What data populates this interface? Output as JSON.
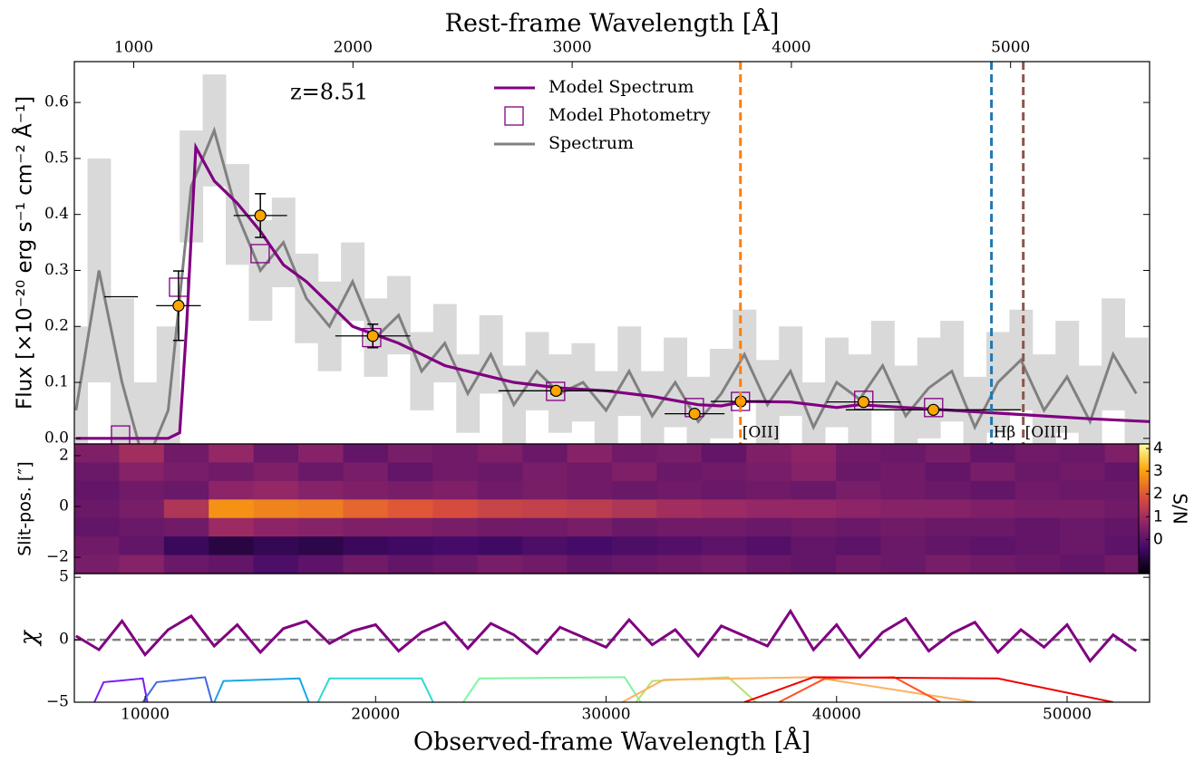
{
  "chart_data": [
    {
      "type": "line",
      "x2label": "Rest-frame Wavelength [Å]",
      "ylabel": "Flux [×10⁻²⁰ erg s⁻¹ cm⁻² Å⁻¹]",
      "annotation": "z=8.51",
      "legend": "upper center",
      "xlim": [
        6930,
        53580
      ],
      "x2lim": [
        729,
        5634
      ],
      "x2ticks": [
        1000,
        2000,
        3000,
        4000,
        5000
      ],
      "ylim": [
        -0.01,
        0.673
      ],
      "yticks": [
        {
          "value": 0,
          "label": "0.0"
        },
        0.1,
        0.2,
        0.3,
        0.4,
        0.5,
        0.6
      ],
      "series": [
        {
          "name": "Model Spectrum",
          "color": "#800080",
          "x": [
            7000,
            11000,
            11500,
            11800,
            12200,
            13000,
            14000,
            15000,
            16000,
            17000,
            18000,
            19000,
            20000,
            21000,
            22000,
            23000,
            24000,
            25000,
            26000,
            27000,
            28000,
            30000,
            32000,
            34000,
            35000,
            36000,
            38000,
            39000,
            40000,
            41000,
            43000,
            45000,
            47000,
            49000,
            51000,
            53580
          ],
          "values": [
            0.0,
            0.0,
            0.01,
            0.2,
            0.52,
            0.46,
            0.42,
            0.37,
            0.31,
            0.28,
            0.24,
            0.2,
            0.185,
            0.17,
            0.15,
            0.13,
            0.12,
            0.11,
            0.1,
            0.095,
            0.09,
            0.085,
            0.075,
            0.06,
            0.058,
            0.066,
            0.065,
            0.06,
            0.055,
            0.06,
            0.055,
            0.05,
            0.045,
            0.04,
            0.035,
            0.03
          ]
        },
        {
          "name": "Model Photometry",
          "color": "#800080",
          "marker": "square",
          "x": [
            8935,
            11452,
            14990,
            19830,
            27810,
            33830,
            35830,
            41180,
            44210
          ],
          "values": [
            0.006,
            0.27,
            0.33,
            0.18,
            0.084,
            0.055,
            0.066,
            0.068,
            0.055
          ]
        },
        {
          "name": "Spectrum",
          "color": "#808080",
          "band_color": "#d9d9d9",
          "x": [
            7000,
            8000,
            9000,
            10000,
            11000,
            12000,
            13000,
            14000,
            15000,
            16000,
            17000,
            18000,
            19000,
            20000,
            21000,
            22000,
            23000,
            24000,
            25000,
            26000,
            27000,
            28000,
            29000,
            30000,
            31000,
            32000,
            33000,
            34000,
            35000,
            36000,
            37000,
            38000,
            39000,
            40000,
            41000,
            42000,
            43000,
            44000,
            45000,
            46000,
            47000,
            48000,
            49000,
            50000,
            51000,
            52000,
            53000
          ],
          "values": [
            0.05,
            0.3,
            0.1,
            -0.05,
            0.05,
            0.45,
            0.55,
            0.4,
            0.3,
            0.35,
            0.25,
            0.2,
            0.28,
            0.18,
            0.22,
            0.12,
            0.17,
            0.08,
            0.15,
            0.06,
            0.12,
            0.08,
            0.1,
            0.05,
            0.12,
            0.04,
            0.1,
            0.03,
            0.08,
            0.15,
            0.06,
            0.12,
            0.02,
            0.1,
            0.07,
            0.13,
            0.04,
            0.09,
            0.12,
            0.02,
            0.1,
            0.14,
            0.05,
            0.11,
            0.03,
            0.15,
            0.08
          ],
          "errors": [
            0.15,
            0.2,
            0.15,
            0.15,
            0.15,
            0.1,
            0.1,
            0.09,
            0.09,
            0.08,
            0.08,
            0.08,
            0.07,
            0.07,
            0.07,
            0.07,
            0.07,
            0.07,
            0.07,
            0.07,
            0.07,
            0.07,
            0.07,
            0.07,
            0.08,
            0.08,
            0.08,
            0.08,
            0.08,
            0.08,
            0.08,
            0.08,
            0.08,
            0.08,
            0.08,
            0.08,
            0.09,
            0.09,
            0.09,
            0.09,
            0.09,
            0.09,
            0.1,
            0.1,
            0.1,
            0.1,
            0.1
          ]
        }
      ],
      "photometry": {
        "color": "#ffa500",
        "x": [
          8960,
          11450,
          15000,
          19880,
          27830,
          33840,
          35840,
          41170,
          44200
        ],
        "values": [
          0.253,
          0.237,
          0.398,
          0.183,
          0.085,
          0.044,
          0.066,
          0.065,
          0.051
        ],
        "xerr": [
          730,
          970,
          1160,
          1630,
          2500,
          1300,
          1300,
          1600,
          3800
        ],
        "yerr": [
          null,
          0.062,
          0.039,
          0.021,
          0.006,
          0.004,
          0.005,
          0.004,
          0.004
        ]
      },
      "lines": [
        {
          "label": "[OII]",
          "x": 35830,
          "color": "#ff7f0e"
        },
        {
          "label": "Hβ",
          "x": 46720,
          "color": "#1f77b4"
        },
        {
          "label": "[OIII]",
          "x": 48100,
          "color": "#8c564b"
        }
      ]
    },
    {
      "type": "heatmap",
      "ylabel": "Slit-pos. [″]",
      "xlim": [
        6930,
        53580
      ],
      "ylim": [
        -2.64,
        2.46
      ],
      "yticks": [
        {
          "value": -2,
          "label": "−2"
        },
        0,
        2
      ],
      "colormap": [
        "#000004",
        "#420a68",
        "#932667",
        "#dd513a",
        "#fca50a",
        "#fcffa4"
      ],
      "clim": [
        -1.5,
        4.2
      ],
      "colorbar_label": "S/N",
      "colorbar_ticks": [
        0,
        1,
        2,
        3,
        4
      ],
      "z": [
        [
          0.5,
          1,
          0.3,
          0.8,
          0.2,
          0.6,
          0.1,
          0.4,
          0.3,
          0.5,
          0.2,
          0.6,
          0.3,
          0.4,
          0.1,
          0.5,
          0.7,
          0.3,
          0.2,
          0.4,
          0.1,
          0.3,
          0.2,
          0.5
        ],
        [
          0.2,
          0.6,
          0.4,
          0.3,
          0.5,
          0.2,
          0.4,
          0.1,
          0.3,
          0.2,
          0.4,
          0.3,
          0.5,
          0.2,
          0.3,
          0.4,
          0.6,
          0.2,
          0.3,
          0.1,
          0.4,
          0.2,
          0.3,
          0.1
        ],
        [
          0.1,
          0.3,
          0.2,
          0.7,
          0.8,
          0.6,
          0.5,
          0.4,
          0.5,
          0.3,
          0.4,
          0.3,
          0.2,
          0.3,
          0.2,
          0.3,
          0.2,
          0.4,
          0.3,
          0.2,
          0.1,
          0.3,
          0.2,
          0.2
        ],
        [
          0.2,
          0.4,
          1.2,
          2.8,
          2.6,
          2.5,
          2.2,
          2.0,
          1.8,
          1.6,
          1.5,
          1.4,
          1.2,
          1.0,
          0.9,
          0.8,
          0.8,
          0.7,
          0.6,
          0.6,
          0.5,
          0.4,
          0.4,
          0.3
        ],
        [
          0.1,
          0.2,
          0.3,
          0.9,
          0.7,
          0.6,
          0.5,
          0.5,
          0.4,
          0.3,
          0.3,
          0.4,
          0.2,
          0.3,
          0.3,
          0.2,
          0.3,
          0.2,
          0.3,
          0.2,
          0.2,
          0.1,
          0.2,
          0.1
        ],
        [
          0.3,
          0.1,
          -0.5,
          -0.8,
          -0.6,
          -0.7,
          -0.5,
          -0.4,
          -0.3,
          -0.4,
          -0.2,
          -0.3,
          -0.2,
          -0.1,
          0.0,
          -0.1,
          0.1,
          0.0,
          0.2,
          0.1,
          0.0,
          0.1,
          0.2,
          0.0
        ],
        [
          0.4,
          0.6,
          0.2,
          0.1,
          -0.2,
          0.0,
          0.3,
          0.1,
          0.2,
          0.4,
          0.3,
          0.1,
          0.2,
          0.3,
          0.4,
          0.2,
          0.1,
          0.3,
          0.2,
          0.4,
          0.3,
          0.2,
          0.1,
          0.3
        ]
      ]
    },
    {
      "type": "line",
      "ylabel": "χ",
      "xlabel": "Observed-frame Wavelength [Å]",
      "xlim": [
        6930,
        53580
      ],
      "xticks": [
        10000,
        20000,
        30000,
        40000,
        50000
      ],
      "ylim": [
        -5,
        5.3
      ],
      "yticks": [
        {
          "value": -5,
          "label": "−5"
        },
        0,
        5
      ],
      "hline": 0,
      "series": [
        {
          "color": "#800080",
          "x": [
            7000,
            8000,
            9000,
            10000,
            11000,
            12000,
            13000,
            14000,
            15000,
            16000,
            17000,
            18000,
            19000,
            20000,
            21000,
            22000,
            23000,
            24000,
            25000,
            26000,
            27000,
            28000,
            29000,
            30000,
            31000,
            32000,
            33000,
            34000,
            35000,
            36000,
            37000,
            38000,
            39000,
            40000,
            41000,
            42000,
            43000,
            44000,
            45000,
            46000,
            47000,
            48000,
            49000,
            50000,
            51000,
            52000,
            53000
          ],
          "values": [
            0.3,
            -0.8,
            1.5,
            -1.2,
            0.8,
            1.9,
            -0.5,
            1.2,
            -1.0,
            0.9,
            1.5,
            -0.3,
            0.7,
            1.2,
            -0.9,
            0.6,
            1.4,
            -0.7,
            1.3,
            0.4,
            -1.1,
            1.0,
            0.2,
            -0.6,
            1.6,
            -0.4,
            0.8,
            -1.3,
            1.1,
            0.3,
            -0.5,
            2.3,
            -0.8,
            1.2,
            -1.4,
            0.6,
            1.7,
            -0.9,
            0.5,
            1.4,
            -1.0,
            0.8,
            -0.6,
            1.2,
            -1.7,
            0.4,
            -0.9
          ]
        }
      ],
      "filters": [
        {
          "color": "#7a1cf6",
          "x": [
            7800,
            8200,
            9900,
            10100
          ],
          "values": [
            -5,
            -3.4,
            -3.1,
            -5
          ]
        },
        {
          "color": "#4169e1",
          "x": [
            9900,
            10500,
            12600,
            12900
          ],
          "values": [
            -5,
            -3.4,
            -3.0,
            -5
          ]
        },
        {
          "color": "#1aa6e6",
          "x": [
            13000,
            13400,
            16700,
            17100
          ],
          "values": [
            -5,
            -3.3,
            -3.1,
            -5
          ]
        },
        {
          "color": "#30d9d0",
          "x": [
            17500,
            18000,
            22000,
            22500
          ],
          "values": [
            -5,
            -3.1,
            -3.1,
            -5
          ]
        },
        {
          "color": "#80f5a0",
          "x": [
            23800,
            24500,
            30800,
            31500
          ],
          "values": [
            -5,
            -3.1,
            -3.0,
            -5
          ]
        },
        {
          "color": "#b8e070",
          "x": [
            31300,
            32000,
            35300,
            36500
          ],
          "values": [
            -5,
            -3.3,
            -3.0,
            -5
          ]
        },
        {
          "color": "#ffb060",
          "x": [
            30700,
            32500,
            39000,
            46000
          ],
          "values": [
            -5,
            -3.2,
            -3.0,
            -5
          ]
        },
        {
          "color": "#ff5020",
          "x": [
            37500,
            39500,
            42500,
            44500
          ],
          "values": [
            -5,
            -3.1,
            -3.0,
            -5
          ]
        },
        {
          "color": "#ee0000",
          "x": [
            36000,
            39000,
            47000,
            52000
          ],
          "values": [
            -5,
            -3.0,
            -3.1,
            -5
          ]
        }
      ]
    }
  ]
}
